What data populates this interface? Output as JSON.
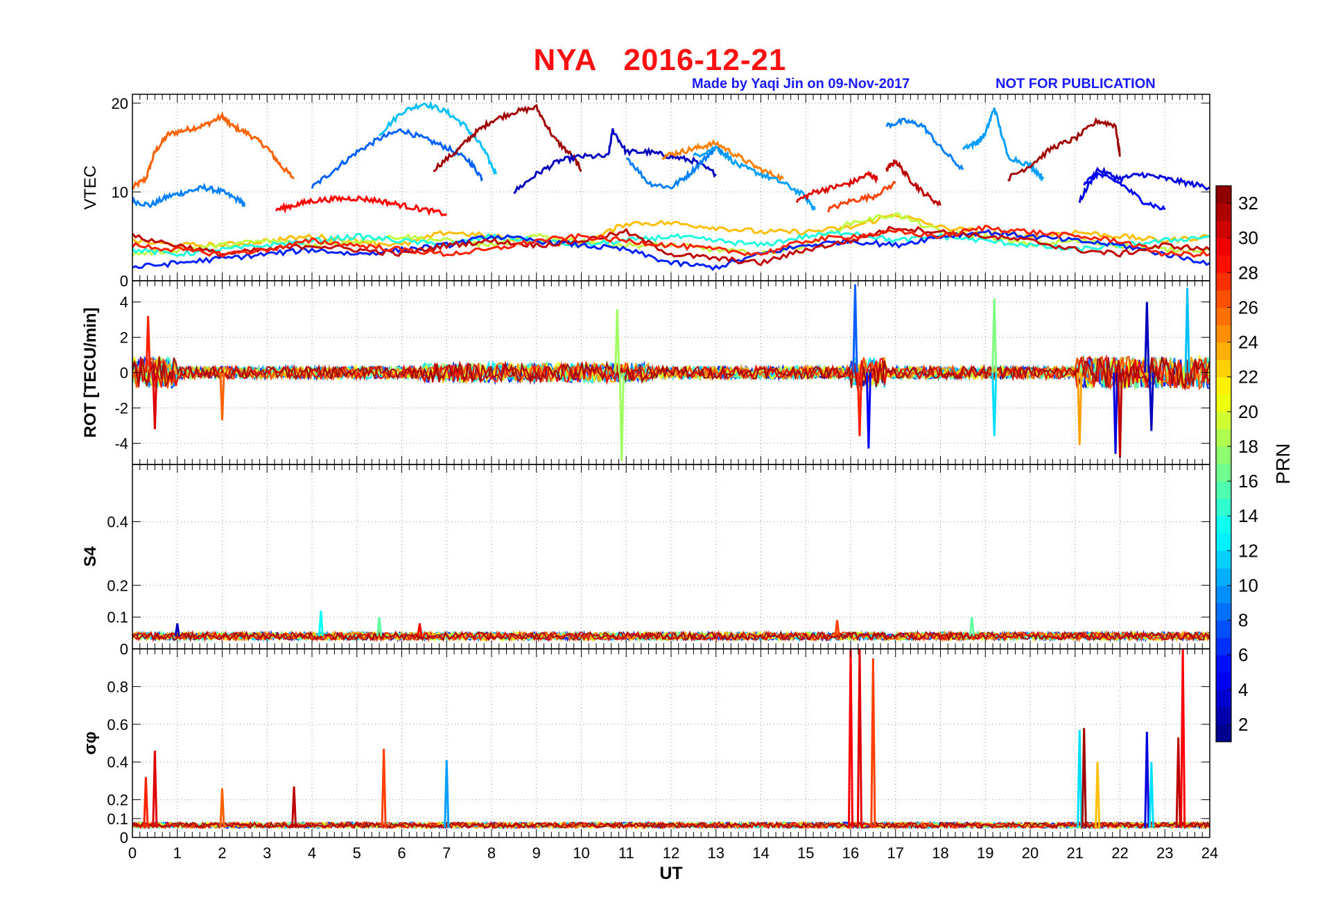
{
  "header": {
    "title": "NYA   2016-12-21",
    "credit": "Made by Yaqi Jin on 09-Nov-2017",
    "warning": "NOT FOR PUBLICATION"
  },
  "chart_data": [
    {
      "type": "line",
      "panel": "vtec",
      "ylabel": "VTEC",
      "ylim": [
        0,
        21
      ],
      "yticks": [
        0,
        10,
        20
      ],
      "xlim": [
        0,
        24
      ],
      "grid": true,
      "colored_by": "PRN",
      "series": [
        {
          "prn": 26,
          "x": [
            0.0,
            0.3,
            0.5,
            0.8,
            1.2,
            1.6,
            2.0,
            2.2,
            2.6,
            3.0,
            3.3,
            3.6
          ],
          "y": [
            10.5,
            11.5,
            14.5,
            16.5,
            17.0,
            17.5,
            18.5,
            17.5,
            16.5,
            15.0,
            13.0,
            11.5
          ]
        },
        {
          "prn": 9,
          "x": [
            0.0,
            0.4,
            0.8,
            1.2,
            1.6,
            2.0,
            2.4,
            2.5
          ],
          "y": [
            9.0,
            8.5,
            9.5,
            10.0,
            10.5,
            10.0,
            9.0,
            8.5
          ]
        },
        {
          "prn": 8,
          "x": [
            4.0,
            4.5,
            5.0,
            5.5,
            6.0,
            6.5,
            7.0,
            7.5,
            7.8
          ],
          "y": [
            10.5,
            12.5,
            14.5,
            16.0,
            17.0,
            16.0,
            15.0,
            13.5,
            11.5
          ]
        },
        {
          "prn": 11,
          "x": [
            5.5,
            6.0,
            6.5,
            7.0,
            7.4,
            7.8,
            8.1
          ],
          "y": [
            16.5,
            19.0,
            20.0,
            19.0,
            17.5,
            15.0,
            12.0
          ]
        },
        {
          "prn": 32,
          "x": [
            6.7,
            7.2,
            7.6,
            8.0,
            8.5,
            9.0,
            9.4,
            9.8,
            10.0
          ],
          "y": [
            12.5,
            14.5,
            16.5,
            18.0,
            19.0,
            19.5,
            16.0,
            14.0,
            12.5
          ]
        },
        {
          "prn": 3,
          "x": [
            8.5,
            9.0,
            9.5,
            10.0,
            10.6,
            10.7,
            11.0,
            11.5,
            12.0,
            12.5,
            13.0
          ],
          "y": [
            10.0,
            12.0,
            13.5,
            14.0,
            14.0,
            17.0,
            14.5,
            14.5,
            14.0,
            13.5,
            12.0
          ]
        },
        {
          "prn": 9,
          "x": [
            11.0,
            11.5,
            12.0,
            12.4,
            12.8,
            13.0,
            13.3
          ],
          "y": [
            14.0,
            11.0,
            10.5,
            12.0,
            14.0,
            15.0,
            14.0
          ]
        },
        {
          "prn": 25,
          "x": [
            11.8,
            12.2,
            12.6,
            13.0,
            13.5,
            14.0,
            14.5
          ],
          "y": [
            14.0,
            14.5,
            15.0,
            15.5,
            14.0,
            12.5,
            11.5
          ]
        },
        {
          "prn": 10,
          "x": [
            12.5,
            13.0,
            13.5,
            14.0,
            14.5,
            15.0,
            15.2
          ],
          "y": [
            14.0,
            15.0,
            13.0,
            12.0,
            11.0,
            9.5,
            8.0
          ]
        },
        {
          "prn": 30,
          "x": [
            14.8,
            15.2,
            15.6,
            16.0,
            16.4,
            16.6
          ],
          "y": [
            9.0,
            10.0,
            10.5,
            11.0,
            12.0,
            11.5
          ]
        },
        {
          "prn": 27,
          "x": [
            15.5,
            16.0,
            16.5,
            17.0
          ],
          "y": [
            8.0,
            9.0,
            9.5,
            11.0
          ]
        },
        {
          "prn": 9,
          "x": [
            16.8,
            17.2,
            17.6,
            18.0,
            18.5
          ],
          "y": [
            17.5,
            18.0,
            17.5,
            15.0,
            12.5
          ]
        },
        {
          "prn": 31,
          "x": [
            16.8,
            17.0,
            17.3,
            17.6,
            18.0
          ],
          "y": [
            12.5,
            13.5,
            11.5,
            10.0,
            8.5
          ]
        },
        {
          "prn": 10,
          "x": [
            18.5,
            18.8,
            19.0,
            19.2,
            19.5,
            20.0,
            20.3
          ],
          "y": [
            15.0,
            15.5,
            16.5,
            19.5,
            14.0,
            13.0,
            11.5
          ]
        },
        {
          "prn": 32,
          "x": [
            19.5,
            20.0,
            20.5,
            21.0,
            21.5,
            21.9,
            22.0
          ],
          "y": [
            11.5,
            13.0,
            15.0,
            16.0,
            18.0,
            17.5,
            14.0
          ]
        },
        {
          "prn": 4,
          "x": [
            21.1,
            21.5,
            22.0,
            22.5,
            23.0,
            23.5,
            24.0
          ],
          "y": [
            9.0,
            12.5,
            11.5,
            12.0,
            11.5,
            11.0,
            10.5
          ]
        },
        {
          "prn": 5,
          "x": [
            21.2,
            21.5,
            22.0,
            22.5,
            23.0
          ],
          "y": [
            11.0,
            12.0,
            11.0,
            9.0,
            8.0
          ]
        },
        {
          "prn": 29,
          "x": [
            3.2,
            3.6,
            4.0,
            4.5,
            5.0,
            5.5,
            6.0,
            6.5,
            7.0
          ],
          "y": [
            8.0,
            8.5,
            9.0,
            9.2,
            9.3,
            9.0,
            8.5,
            8.0,
            7.5
          ]
        },
        {
          "prn": 23,
          "x": [
            0.0,
            1.0,
            2.0,
            3.0,
            4.0,
            5.0,
            6.0,
            7.0,
            8.0,
            9.0,
            10.0,
            11.0,
            12.0,
            13.0,
            14.0,
            15.0,
            16.0,
            17.0,
            18.0,
            19.0,
            20.0,
            21.0,
            22.0,
            23.0,
            24.0
          ],
          "y": [
            4.5,
            4.0,
            4.0,
            4.5,
            5.0,
            4.5,
            4.0,
            5.5,
            5.0,
            4.5,
            4.0,
            6.5,
            6.5,
            6.0,
            5.5,
            5.5,
            6.0,
            7.5,
            6.0,
            5.5,
            5.0,
            5.5,
            5.0,
            4.5,
            5.0
          ]
        },
        {
          "prn": 19,
          "x": [
            0.0,
            1.0,
            2.0,
            3.0,
            4.0,
            5.0,
            6.0,
            7.0,
            8.0,
            9.0,
            10.0,
            11.0,
            12.0,
            13.0,
            14.0,
            15.0,
            16.0,
            17.0,
            18.0,
            19.0,
            20.0,
            21.0,
            22.0,
            23.0,
            24.0
          ],
          "y": [
            3.0,
            3.5,
            4.0,
            4.5,
            4.0,
            4.5,
            5.0,
            4.5,
            4.0,
            5.0,
            4.5,
            4.0,
            4.0,
            3.5,
            3.0,
            4.0,
            6.5,
            7.5,
            5.5,
            5.0,
            4.0,
            4.5,
            4.0,
            3.5,
            3.5
          ]
        },
        {
          "prn": 14,
          "x": [
            0.0,
            1.0,
            2.0,
            3.0,
            4.0,
            5.0,
            6.0,
            7.0,
            8.0,
            9.0,
            10.0,
            11.0,
            12.0,
            13.0,
            14.0,
            15.0,
            16.0,
            17.0,
            18.0,
            19.0,
            20.0,
            21.0,
            22.0,
            23.0,
            24.0
          ],
          "y": [
            3.5,
            3.0,
            3.5,
            4.0,
            4.5,
            5.0,
            4.5,
            4.0,
            5.0,
            4.5,
            4.0,
            4.5,
            5.0,
            4.5,
            4.0,
            5.0,
            5.5,
            4.5,
            5.0,
            4.5,
            4.0,
            3.5,
            4.0,
            4.5,
            5.0
          ]
        },
        {
          "prn": 6,
          "x": [
            0.0,
            1.0,
            2.0,
            3.0,
            4.0,
            5.0,
            6.0,
            7.0,
            8.0,
            9.0,
            10.0,
            11.0,
            12.0,
            13.0,
            14.0,
            15.0,
            16.0,
            17.0,
            18.0,
            19.0,
            20.0,
            21.0,
            22.0,
            23.0,
            24.0
          ],
          "y": [
            1.5,
            2.0,
            2.5,
            3.0,
            3.5,
            3.0,
            3.5,
            4.0,
            5.0,
            4.5,
            4.0,
            3.5,
            2.0,
            1.5,
            3.0,
            4.0,
            4.5,
            4.0,
            5.0,
            5.5,
            5.0,
            4.5,
            4.0,
            3.0,
            2.0
          ]
        },
        {
          "prn": 31,
          "x": [
            0.0,
            1.0,
            2.0,
            3.0,
            4.0,
            5.0,
            6.0,
            7.0,
            8.0,
            9.0,
            10.0,
            11.0,
            12.0,
            13.0,
            14.0,
            15.0,
            16.0,
            17.0,
            18.0,
            19.0,
            20.0,
            21.0,
            22.0,
            23.0,
            24.0
          ],
          "y": [
            5.0,
            4.0,
            3.0,
            3.5,
            4.0,
            3.5,
            3.0,
            4.0,
            4.5,
            4.0,
            4.5,
            5.5,
            3.0,
            2.5,
            2.0,
            3.5,
            4.5,
            6.0,
            5.5,
            5.0,
            4.5,
            3.5,
            3.0,
            4.0,
            3.5
          ]
        },
        {
          "prn": 28,
          "x": [
            0.0,
            1.0,
            2.0,
            3.0,
            4.0,
            5.0,
            6.0,
            7.0,
            8.0,
            9.0,
            10.0,
            11.0,
            12.0,
            13.0,
            14.0,
            15.0,
            16.0,
            17.0,
            18.0,
            19.0,
            20.0,
            21.0,
            22.0,
            23.0,
            24.0
          ],
          "y": [
            4.0,
            3.5,
            3.0,
            3.5,
            4.5,
            4.0,
            3.5,
            3.0,
            3.5,
            4.5,
            5.0,
            4.5,
            4.0,
            3.5,
            3.0,
            4.5,
            5.0,
            5.5,
            5.0,
            6.0,
            5.5,
            5.0,
            4.5,
            3.0,
            3.0
          ]
        }
      ]
    },
    {
      "type": "line",
      "panel": "rot",
      "ylabel": "ROT [TECU/min]",
      "ylim": [
        -5.2,
        5.2
      ],
      "yticks": [
        -4,
        -2,
        0,
        2,
        4
      ],
      "xlim": [
        0,
        24
      ],
      "grid": true,
      "colored_by": "PRN",
      "notes": "Dense near-zero fluctuations (about ±0.7) across the day; bursts near 0–1 UT, 10.5–11 UT, 16–16.7 UT and 21–24 UT.",
      "spikes": [
        {
          "prn": 30,
          "x": 0.5,
          "y": -3.2
        },
        {
          "prn": 28,
          "x": 0.35,
          "y": 3.2
        },
        {
          "prn": 26,
          "x": 2.0,
          "y": -2.7
        },
        {
          "prn": 18,
          "x": 10.9,
          "y": -5.0
        },
        {
          "prn": 18,
          "x": 10.8,
          "y": 3.6
        },
        {
          "prn": 8,
          "x": 16.1,
          "y": 5.0
        },
        {
          "prn": 5,
          "x": 16.4,
          "y": -4.3
        },
        {
          "prn": 28,
          "x": 16.2,
          "y": -3.6
        },
        {
          "prn": 17,
          "x": 19.2,
          "y": 4.2
        },
        {
          "prn": 12,
          "x": 19.2,
          "y": -3.6
        },
        {
          "prn": 24,
          "x": 21.1,
          "y": -4.1
        },
        {
          "prn": 4,
          "x": 21.9,
          "y": -4.6
        },
        {
          "prn": 31,
          "x": 22.0,
          "y": -4.8
        },
        {
          "prn": 3,
          "x": 22.6,
          "y": 4.0
        },
        {
          "prn": 11,
          "x": 23.5,
          "y": 4.8
        },
        {
          "prn": 3,
          "x": 22.7,
          "y": -3.3
        }
      ]
    },
    {
      "type": "line",
      "panel": "s4",
      "ylabel": "S4",
      "ylim": [
        0,
        0.58
      ],
      "yticks": [
        0,
        0.1,
        0.2,
        0.4
      ],
      "xlim": [
        0,
        24
      ],
      "grid": true,
      "colored_by": "PRN",
      "notes": "Baseline about 0.03–0.05 across all PRNs.",
      "spikes": [
        {
          "prn": 3,
          "x": 1.0,
          "y": 0.08
        },
        {
          "prn": 13,
          "x": 4.2,
          "y": 0.12
        },
        {
          "prn": 16,
          "x": 5.5,
          "y": 0.1
        },
        {
          "prn": 27,
          "x": 15.7,
          "y": 0.09
        },
        {
          "prn": 16,
          "x": 18.7,
          "y": 0.1
        },
        {
          "prn": 29,
          "x": 6.4,
          "y": 0.08
        }
      ]
    },
    {
      "type": "line",
      "panel": "sigma_phi",
      "ylabel": "σφ",
      "ylim": [
        0,
        1.0
      ],
      "yticks": [
        0,
        0.1,
        0.2,
        0.4,
        0.6,
        0.8
      ],
      "xlim": [
        0,
        24
      ],
      "xticks": [
        0,
        1,
        2,
        3,
        4,
        5,
        6,
        7,
        8,
        9,
        10,
        11,
        12,
        13,
        14,
        15,
        16,
        17,
        18,
        19,
        20,
        21,
        22,
        23,
        24
      ],
      "xlabel": "UT",
      "grid": true,
      "colored_by": "PRN",
      "notes": "Baseline about 0.05; strong bursts at about 16–16.7 UT and 23.3–23.5 UT.",
      "spikes": [
        {
          "prn": 30,
          "x": 0.5,
          "y": 0.46
        },
        {
          "prn": 28,
          "x": 0.3,
          "y": 0.32
        },
        {
          "prn": 26,
          "x": 2.0,
          "y": 0.26
        },
        {
          "prn": 27,
          "x": 5.6,
          "y": 0.47
        },
        {
          "prn": 10,
          "x": 7.0,
          "y": 0.41
        },
        {
          "prn": 31,
          "x": 3.6,
          "y": 0.27
        },
        {
          "prn": 29,
          "x": 16.0,
          "y": 1.0
        },
        {
          "prn": 30,
          "x": 16.2,
          "y": 1.0
        },
        {
          "prn": 27,
          "x": 16.5,
          "y": 0.95
        },
        {
          "prn": 12,
          "x": 21.1,
          "y": 0.57
        },
        {
          "prn": 32,
          "x": 21.2,
          "y": 0.58
        },
        {
          "prn": 23,
          "x": 21.5,
          "y": 0.4
        },
        {
          "prn": 4,
          "x": 22.6,
          "y": 0.56
        },
        {
          "prn": 12,
          "x": 22.7,
          "y": 0.4
        },
        {
          "prn": 29,
          "x": 23.4,
          "y": 1.0
        },
        {
          "prn": 31,
          "x": 23.3,
          "y": 0.53
        }
      ]
    }
  ],
  "colorbar": {
    "label": "PRN",
    "ticks": [
      2,
      4,
      6,
      8,
      10,
      12,
      14,
      16,
      18,
      20,
      22,
      24,
      26,
      28,
      30,
      32
    ],
    "range": [
      1,
      33
    ]
  }
}
